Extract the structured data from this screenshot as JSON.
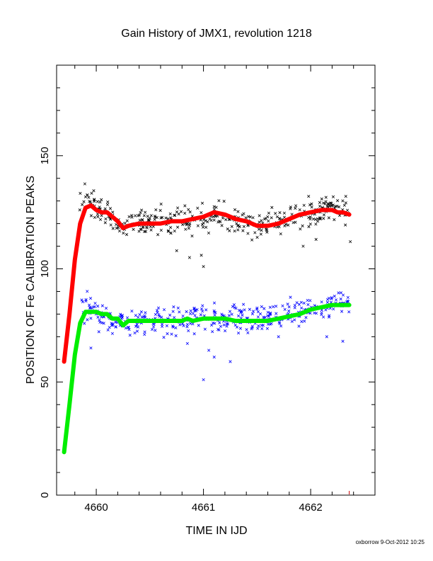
{
  "chart_data": {
    "type": "scatter",
    "title": "Gain History of JMX1, revolution 1218",
    "xlabel": "TIME IN IJD",
    "ylabel": "POSITION OF Fe CALIBRATION PEAKS",
    "footer": "oxborrow  9-Oct-2012 10:25",
    "xlim": [
      4659.63,
      4662.6
    ],
    "ylim": [
      0,
      190
    ],
    "x_ticks": [
      4660,
      4661,
      4662
    ],
    "x_tick_labels": [
      "4660",
      "4661",
      "4662"
    ],
    "y_ticks": [
      0,
      50,
      100,
      150
    ],
    "y_tick_labels": [
      "0",
      "50",
      "100",
      "150"
    ],
    "grid": false,
    "legend": "none",
    "colors": {
      "upper_points": "#000000",
      "upper_fit": "#ff0000",
      "lower_points": "#0000ff",
      "lower_fit": "#00ee00",
      "ramp_marker": "#cc0000"
    },
    "series": [
      {
        "role": "upper_points",
        "x": [
          4659.84,
          4659.9,
          4659.95,
          4660.0,
          4660.05,
          4660.1,
          4660.15,
          4660.2,
          4660.25,
          4660.3,
          4660.4,
          4660.5,
          4660.6,
          4660.7,
          4660.8,
          4660.85,
          4660.9,
          4661.0,
          4661.1,
          4661.2,
          4661.3,
          4661.4,
          4661.5,
          4661.6,
          4661.7,
          4661.8,
          4661.9,
          4662.0,
          4662.1,
          4662.2,
          4662.3,
          4662.36
        ],
        "y": [
          128,
          130,
          129,
          128,
          126,
          124,
          122,
          121,
          119,
          120,
          121,
          121,
          121,
          122,
          122,
          120,
          121,
          122,
          124,
          123,
          122,
          121,
          119,
          120,
          121,
          122,
          124,
          125,
          126,
          127,
          126,
          124
        ],
        "low_outliers": [
          [
            4660.75,
            108
          ],
          [
            4660.87,
            105
          ],
          [
            4660.98,
            106
          ],
          [
            4661.0,
            101
          ],
          [
            4661.93,
            110
          ],
          [
            4662.05,
            113
          ],
          [
            4662.37,
            112
          ]
        ]
      },
      {
        "role": "upper_fit",
        "x": [
          4659.7,
          4659.75,
          4659.8,
          4659.85,
          4659.9,
          4659.95,
          4660.0,
          4660.05,
          4660.1,
          4660.15,
          4660.2,
          4660.25,
          4660.3,
          4660.4,
          4660.5,
          4660.6,
          4660.7,
          4660.8,
          4660.9,
          4661.0,
          4661.1,
          4661.2,
          4661.3,
          4661.4,
          4661.5,
          4661.6,
          4661.7,
          4661.8,
          4661.9,
          4662.0,
          4662.1,
          4662.2,
          4662.25,
          4662.3,
          4662.36
        ],
        "y": [
          59,
          80,
          104,
          120,
          127,
          128,
          126,
          125,
          125,
          123,
          121,
          118,
          119,
          120,
          120,
          120,
          121,
          121,
          122,
          123,
          125,
          124,
          122,
          121,
          119,
          119,
          120,
          122,
          124,
          125,
          126,
          126,
          125,
          125,
          124
        ]
      },
      {
        "role": "lower_points",
        "x": [
          4659.86,
          4659.9,
          4659.95,
          4660.0,
          4660.05,
          4660.1,
          4660.15,
          4660.2,
          4660.25,
          4660.3,
          4660.4,
          4660.5,
          4660.6,
          4660.7,
          4660.8,
          4660.9,
          4661.0,
          4661.1,
          4661.2,
          4661.3,
          4661.4,
          4661.5,
          4661.6,
          4661.7,
          4661.8,
          4661.9,
          4662.0,
          4662.1,
          4662.2,
          4662.3,
          4662.36
        ],
        "y": [
          82,
          82,
          81,
          80,
          79,
          78,
          77,
          78,
          76,
          76,
          77,
          77,
          77,
          77,
          78,
          78,
          78,
          78,
          78,
          78,
          77,
          77,
          78,
          79,
          80,
          81,
          82,
          83,
          84,
          85,
          84
        ],
        "low_outliers": [
          [
            4659.95,
            65
          ],
          [
            4660.45,
            71
          ],
          [
            4660.85,
            67
          ],
          [
            4661.05,
            64
          ],
          [
            4661.1,
            61
          ],
          [
            4661.25,
            59
          ],
          [
            4661.0,
            51
          ],
          [
            4661.7,
            70
          ],
          [
            4662.15,
            70
          ],
          [
            4662.3,
            68
          ]
        ]
      },
      {
        "role": "lower_fit",
        "x": [
          4659.7,
          4659.75,
          4659.8,
          4659.85,
          4659.9,
          4659.95,
          4660.0,
          4660.05,
          4660.1,
          4660.15,
          4660.2,
          4660.25,
          4660.3,
          4660.4,
          4660.5,
          4660.6,
          4660.7,
          4660.8,
          4660.85,
          4660.9,
          4661.0,
          4661.1,
          4661.2,
          4661.3,
          4661.4,
          4661.5,
          4661.6,
          4661.7,
          4661.8,
          4661.9,
          4662.0,
          4662.1,
          4662.2,
          4662.3,
          4662.36
        ],
        "y": [
          19,
          40,
          62,
          76,
          81,
          81,
          81,
          80,
          80,
          78,
          78,
          75,
          77,
          77,
          77,
          77,
          77,
          77,
          78,
          77,
          78,
          78,
          78,
          77,
          77,
          77,
          77,
          78,
          79,
          80,
          82,
          83,
          84,
          84,
          84
        ]
      }
    ]
  }
}
